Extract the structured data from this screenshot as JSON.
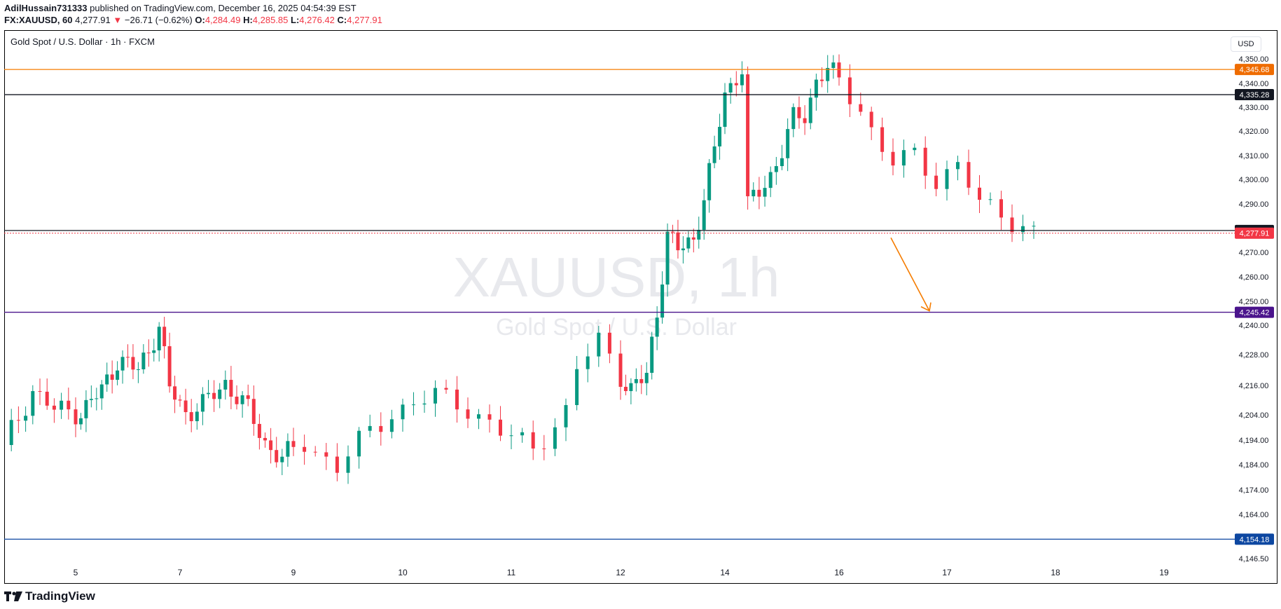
{
  "header": {
    "publisher": "AdilHussain731333",
    "published_text": " published on TradingView.com, December 16, 2025 04:54:39 EST",
    "symbol": "FX:XAUUSD, 60",
    "last": "4,277.91",
    "arrow": "▼",
    "change": "−26.71 (−0.62%)",
    "o_label": "O:",
    "o": "4,284.49",
    "h_label": "H:",
    "h": "4,285.85",
    "l_label": "L:",
    "l": "4,276.42",
    "c_label": "C:",
    "c": "4,277.91"
  },
  "chart_title": "Gold Spot / U.S. Dollar · 1h · FXCM",
  "currency": "USD",
  "footer_brand": "TradingView",
  "chart_data": {
    "type": "candlestick",
    "watermark": {
      "symbol": "XAUUSD, 1h",
      "description": "Gold Spot / U.S. Dollar"
    },
    "x_ticks": [
      "5",
      "7",
      "9",
      "10",
      "11",
      "12",
      "14",
      "16",
      "17",
      "18",
      "19"
    ],
    "y_ticks": [
      {
        "label": "4,350.00",
        "value": 4350
      },
      {
        "label": "4,340.00",
        "value": 4340
      },
      {
        "label": "4,330.00",
        "value": 4330
      },
      {
        "label": "4,320.00",
        "value": 4320
      },
      {
        "label": "4,310.00",
        "value": 4310
      },
      {
        "label": "4,300.00",
        "value": 4300
      },
      {
        "label": "4,290.00",
        "value": 4290
      },
      {
        "label": "4,270.00",
        "value": 4270
      },
      {
        "label": "4,260.00",
        "value": 4260
      },
      {
        "label": "4,250.00",
        "value": 4250
      },
      {
        "label": "4,240.00",
        "value": 4240
      },
      {
        "label": "4,228.00",
        "value": 4228
      },
      {
        "label": "4,216.00",
        "value": 4216
      },
      {
        "label": "4,204.00",
        "value": 4204
      },
      {
        "label": "4,194.00",
        "value": 4194
      },
      {
        "label": "4,184.00",
        "value": 4184
      },
      {
        "label": "4,174.00",
        "value": 4174
      },
      {
        "label": "4,164.00",
        "value": 4164
      },
      {
        "label": "4,146.50",
        "value": 4146.5
      }
    ],
    "levels": [
      {
        "value": 4345.68,
        "label": "4,345.68",
        "color": "#f57c00",
        "badge": "#ef6c00",
        "style": "solid"
      },
      {
        "value": 4335.28,
        "label": "4,335.28",
        "color": "#131722",
        "badge": "#131722",
        "style": "solid"
      },
      {
        "value": 4279.02,
        "label": "4,279.02",
        "color": "#131722",
        "badge": "#131722",
        "style": "solid"
      },
      {
        "value": 4277.91,
        "label": "4,277.91",
        "color": "#f23645",
        "badge": "#f23645",
        "style": "dotted"
      },
      {
        "value": 4245.42,
        "label": "4,245.42",
        "color": "#4a148c",
        "badge": "#4a148c",
        "style": "solid"
      },
      {
        "value": 4154.18,
        "label": "4,154.18",
        "color": "#0d47a1",
        "badge": "#0d47a1",
        "style": "solid"
      }
    ],
    "arrow": {
      "from": {
        "day": 16.4,
        "price": 4276
      },
      "to": {
        "day": 16.8,
        "price": 4246
      },
      "color": "#f57c00"
    },
    "colors": {
      "up": "#089981",
      "down": "#f23645"
    },
    "price_path": [
      [
        4.0,
        4192
      ],
      [
        4.4,
        4214
      ],
      [
        4.7,
        4206
      ],
      [
        5.1,
        4205
      ],
      [
        5.5,
        4214
      ],
      [
        5.8,
        4226
      ],
      [
        6.2,
        4222
      ],
      [
        6.6,
        4239
      ],
      [
        6.8,
        4215
      ],
      [
        7.1,
        4205
      ],
      [
        7.4,
        4208
      ],
      [
        7.8,
        4217
      ],
      [
        8.2,
        4206
      ],
      [
        8.5,
        4193
      ],
      [
        8.8,
        4186
      ],
      [
        9.1,
        4193
      ],
      [
        9.4,
        4183
      ],
      [
        9.6,
        4193
      ],
      [
        9.9,
        4205
      ],
      [
        10.3,
        4212
      ],
      [
        10.6,
        4207
      ],
      [
        10.9,
        4197
      ],
      [
        11.2,
        4191
      ],
      [
        11.5,
        4205
      ],
      [
        11.6,
        4222
      ],
      [
        11.8,
        4234
      ],
      [
        12.0,
        4220
      ],
      [
        12.2,
        4214
      ],
      [
        12.5,
        4220
      ],
      [
        12.7,
        4246
      ],
      [
        12.9,
        4277
      ],
      [
        13.1,
        4271
      ],
      [
        13.4,
        4276
      ],
      [
        13.6,
        4292
      ],
      [
        13.8,
        4312
      ],
      [
        14.0,
        4336
      ],
      [
        14.3,
        4346
      ],
      [
        14.4,
        4289
      ],
      [
        14.6,
        4295
      ],
      [
        14.8,
        4302
      ],
      [
        15.0,
        4312
      ],
      [
        15.2,
        4325
      ],
      [
        15.4,
        4327
      ],
      [
        15.6,
        4341
      ],
      [
        15.8,
        4346
      ],
      [
        16.0,
        4341
      ],
      [
        16.2,
        4330
      ],
      [
        16.35,
        4315
      ],
      [
        16.5,
        4307
      ],
      [
        16.7,
        4310
      ],
      [
        16.9,
        4300
      ],
      [
        17.1,
        4306
      ],
      [
        17.3,
        4290
      ],
      [
        17.5,
        4286
      ],
      [
        17.7,
        4281
      ],
      [
        17.8,
        4278
      ]
    ]
  }
}
